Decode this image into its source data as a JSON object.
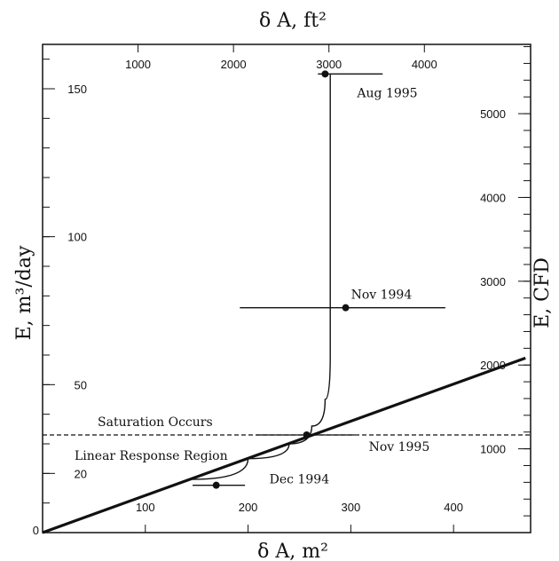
{
  "chart_data": {
    "type": "scatter",
    "axes": {
      "bottom": {
        "label": "δ A, m²",
        "range": [
          0,
          475
        ],
        "ticks": [
          100,
          200,
          300,
          400
        ]
      },
      "top": {
        "label": "δ A, ft²",
        "range": [
          0,
          5113
        ],
        "ticks": [
          1000,
          2000,
          3000,
          4000
        ]
      },
      "left": {
        "label": "E, m³/day",
        "range": [
          0,
          165
        ],
        "ticks": [
          0,
          20,
          50,
          100,
          150
        ]
      },
      "right": {
        "label": "E, CFD",
        "range": [
          0,
          5827
        ],
        "ticks": [
          1000,
          2000,
          3000,
          4000,
          5000
        ]
      }
    },
    "series": [
      {
        "name": "Aug 1995",
        "x": 275,
        "y": 155,
        "x_error": [
          268,
          331
        ],
        "label": "Aug 1995"
      },
      {
        "name": "Nov 1994",
        "x": 295,
        "y": 76,
        "x_error": [
          192,
          392
        ],
        "label": "Nov 1994"
      },
      {
        "name": "Nov 1995",
        "x": 257,
        "y": 33,
        "x_error": [
          208,
          304
        ],
        "label": "Nov 1995"
      },
      {
        "name": "Dec 1994",
        "x": 169,
        "y": 16,
        "x_error": [
          146,
          197
        ],
        "label": "Dec 1994"
      }
    ],
    "linear_response_line": {
      "x": [
        0,
        470
      ],
      "y": [
        0,
        59
      ]
    },
    "saturation_curve": {
      "x": [
        145,
        200,
        240,
        262,
        275,
        280,
        280
      ],
      "y": [
        18,
        25,
        30,
        36,
        45,
        60,
        155
      ]
    },
    "saturation_level": 33,
    "annotations": {
      "saturation": "Saturation Occurs",
      "linear": "Linear Response Region"
    },
    "grid": false
  }
}
